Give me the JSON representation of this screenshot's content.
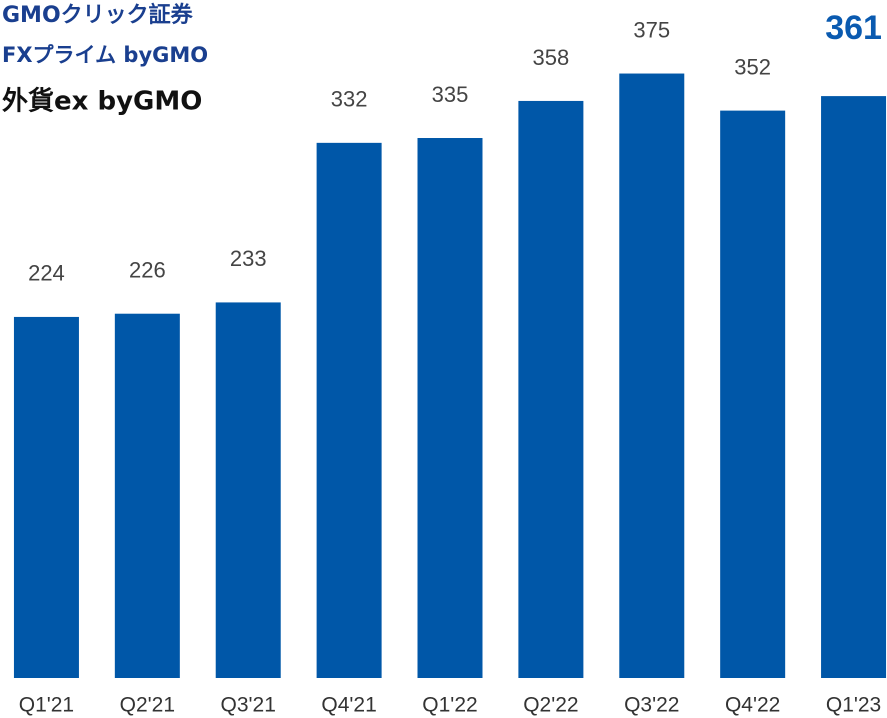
{
  "chart_data": {
    "type": "bar",
    "logos": [
      "GMOクリック証券",
      "FXプライム byGMO",
      "外貨ex byGMO"
    ],
    "categories": [
      "Q1'21",
      "Q2'21",
      "Q3'21",
      "Q4'21",
      "Q1'22",
      "Q2'22",
      "Q3'22",
      "Q4'22",
      "Q1'23"
    ],
    "values": [
      224,
      226,
      233,
      332,
      335,
      358,
      375,
      352,
      361
    ],
    "color": "#0057a8",
    "ylim": [
      0,
      420
    ]
  }
}
